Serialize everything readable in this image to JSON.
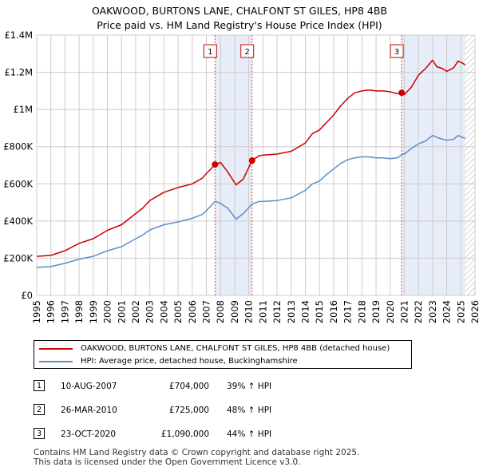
{
  "title_line1": "OAKWOOD, BURTONS LANE, CHALFONT ST GILES, HP8 4BB",
  "title_line2": "Price paid vs. HM Land Registry's House Price Index (HPI)",
  "chart_data": {
    "type": "line",
    "title": "OAKWOOD, BURTONS LANE, CHALFONT ST GILES, HP8 4BB — Price paid vs. HM Land Registry's House Price Index (HPI)",
    "xlim": [
      1995,
      2026
    ],
    "ylim": [
      0,
      1400000
    ],
    "x_ticks": [
      1995,
      1996,
      1997,
      1998,
      1999,
      2000,
      2001,
      2002,
      2003,
      2004,
      2005,
      2006,
      2007,
      2008,
      2009,
      2010,
      2011,
      2012,
      2013,
      2014,
      2015,
      2016,
      2017,
      2018,
      2019,
      2020,
      2021,
      2022,
      2023,
      2024,
      2025,
      2026
    ],
    "y_ticks": [
      {
        "value": 0,
        "label": "£0"
      },
      {
        "value": 200000,
        "label": "£200K"
      },
      {
        "value": 400000,
        "label": "£400K"
      },
      {
        "value": 600000,
        "label": "£600K"
      },
      {
        "value": 800000,
        "label": "£800K"
      },
      {
        "value": 1000000,
        "label": "£1M"
      },
      {
        "value": 1200000,
        "label": "£1.2M"
      },
      {
        "value": 1400000,
        "label": "£1.4M"
      }
    ],
    "grid": true,
    "series": [
      {
        "name": "OAKWOOD, BURTONS LANE, CHALFONT ST GILES, HP8 4BB (detached house)",
        "color": "#cc0000",
        "points": [
          [
            1995.0,
            210000
          ],
          [
            1996.0,
            215000
          ],
          [
            1997.0,
            240000
          ],
          [
            1998.0,
            280000
          ],
          [
            1999.0,
            305000
          ],
          [
            2000.0,
            350000
          ],
          [
            2001.0,
            380000
          ],
          [
            2002.0,
            440000
          ],
          [
            2002.5,
            470000
          ],
          [
            2003.0,
            510000
          ],
          [
            2004.0,
            555000
          ],
          [
            2005.0,
            580000
          ],
          [
            2005.5,
            590000
          ],
          [
            2006.0,
            600000
          ],
          [
            2006.7,
            630000
          ],
          [
            2007.0,
            655000
          ],
          [
            2007.61,
            704000
          ],
          [
            2008.0,
            715000
          ],
          [
            2008.5,
            665000
          ],
          [
            2009.1,
            595000
          ],
          [
            2009.6,
            625000
          ],
          [
            2010.23,
            725000
          ],
          [
            2010.7,
            750000
          ],
          [
            2011.0,
            755000
          ],
          [
            2012.0,
            760000
          ],
          [
            2013.0,
            775000
          ],
          [
            2014.0,
            820000
          ],
          [
            2014.5,
            870000
          ],
          [
            2015.0,
            890000
          ],
          [
            2015.5,
            930000
          ],
          [
            2016.0,
            970000
          ],
          [
            2016.5,
            1020000
          ],
          [
            2017.0,
            1060000
          ],
          [
            2017.5,
            1090000
          ],
          [
            2018.0,
            1100000
          ],
          [
            2018.5,
            1105000
          ],
          [
            2019.0,
            1100000
          ],
          [
            2019.5,
            1100000
          ],
          [
            2020.0,
            1095000
          ],
          [
            2020.5,
            1085000
          ],
          [
            2020.81,
            1090000
          ],
          [
            2021.0,
            1080000
          ],
          [
            2021.5,
            1120000
          ],
          [
            2022.0,
            1185000
          ],
          [
            2022.5,
            1220000
          ],
          [
            2023.0,
            1265000
          ],
          [
            2023.3,
            1230000
          ],
          [
            2023.7,
            1220000
          ],
          [
            2024.0,
            1205000
          ],
          [
            2024.5,
            1225000
          ],
          [
            2024.8,
            1260000
          ],
          [
            2025.1,
            1250000
          ],
          [
            2025.3,
            1240000
          ]
        ]
      },
      {
        "name": "HPI: Average price, detached house, Buckinghamshire",
        "color": "#5b8ec8",
        "points": [
          [
            1995.0,
            150000
          ],
          [
            1996.0,
            155000
          ],
          [
            1997.0,
            172000
          ],
          [
            1998.0,
            195000
          ],
          [
            1999.0,
            210000
          ],
          [
            2000.0,
            240000
          ],
          [
            2001.0,
            262000
          ],
          [
            2002.0,
            305000
          ],
          [
            2002.5,
            325000
          ],
          [
            2003.0,
            352000
          ],
          [
            2004.0,
            380000
          ],
          [
            2005.0,
            395000
          ],
          [
            2006.0,
            415000
          ],
          [
            2006.7,
            435000
          ],
          [
            2007.0,
            455000
          ],
          [
            2007.61,
            506000
          ],
          [
            2008.0,
            495000
          ],
          [
            2008.5,
            470000
          ],
          [
            2009.1,
            410000
          ],
          [
            2009.6,
            440000
          ],
          [
            2010.23,
            490000
          ],
          [
            2010.7,
            505000
          ],
          [
            2011.0,
            505000
          ],
          [
            2012.0,
            510000
          ],
          [
            2013.0,
            525000
          ],
          [
            2014.0,
            565000
          ],
          [
            2014.5,
            600000
          ],
          [
            2015.0,
            615000
          ],
          [
            2015.5,
            650000
          ],
          [
            2016.0,
            680000
          ],
          [
            2016.5,
            710000
          ],
          [
            2017.0,
            730000
          ],
          [
            2017.5,
            740000
          ],
          [
            2018.0,
            745000
          ],
          [
            2018.5,
            745000
          ],
          [
            2019.0,
            740000
          ],
          [
            2019.5,
            740000
          ],
          [
            2020.0,
            735000
          ],
          [
            2020.5,
            740000
          ],
          [
            2020.81,
            757000
          ],
          [
            2021.0,
            760000
          ],
          [
            2021.5,
            790000
          ],
          [
            2022.0,
            815000
          ],
          [
            2022.5,
            830000
          ],
          [
            2023.0,
            860000
          ],
          [
            2023.3,
            850000
          ],
          [
            2023.7,
            840000
          ],
          [
            2024.0,
            835000
          ],
          [
            2024.5,
            840000
          ],
          [
            2024.8,
            860000
          ],
          [
            2025.1,
            850000
          ],
          [
            2025.3,
            845000
          ]
        ]
      }
    ],
    "sale_markers": [
      {
        "label": "1",
        "x": 2007.61,
        "value": 704000
      },
      {
        "label": "2",
        "x": 2010.23,
        "value": 725000
      },
      {
        "label": "3",
        "x": 2020.81,
        "value": 1090000
      }
    ],
    "shaded_spans": [
      [
        2007.61,
        2010.23
      ],
      [
        2020.81,
        2025.3
      ]
    ],
    "hatched_span": [
      2025.3,
      2026
    ]
  },
  "legend": {
    "items": [
      {
        "label": "OAKWOOD, BURTONS LANE, CHALFONT ST GILES, HP8 4BB (detached house)",
        "color": "#cc0000"
      },
      {
        "label": "HPI: Average price, detached house, Buckinghamshire",
        "color": "#5b8ec8"
      }
    ]
  },
  "sales": [
    {
      "num": "1",
      "date": "10-AUG-2007",
      "price": "£704,000",
      "pct": "39% ↑ HPI"
    },
    {
      "num": "2",
      "date": "26-MAR-2010",
      "price": "£725,000",
      "pct": "48% ↑ HPI"
    },
    {
      "num": "3",
      "date": "23-OCT-2020",
      "price": "£1,090,000",
      "pct": "44% ↑ HPI"
    }
  ],
  "footer": {
    "line1": "Contains HM Land Registry data © Crown copyright and database right 2025.",
    "line2": "This data is licensed under the Open Government Licence v3.0."
  }
}
